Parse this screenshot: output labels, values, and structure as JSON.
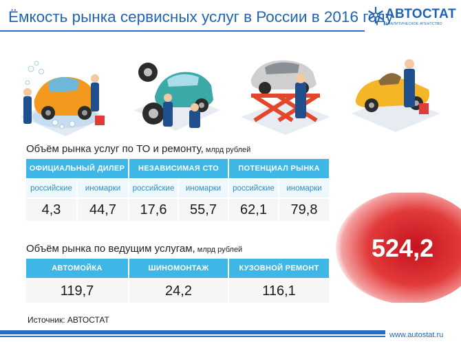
{
  "header": {
    "title": "Ёмкость рынка сервисных услуг в России в 2016 году",
    "logo_name": "АВТОСТАТ",
    "logo_sub": "АНАЛИТИЧЕСКОЕ АГЕНТСТВО"
  },
  "section1": {
    "title": "Объём рынка услуг по ТО и ремонту,",
    "unit": " млрд рублей",
    "groups": [
      {
        "label": "ОФИЦИАЛЬНЫЙ ДИЛЕР",
        "sub": [
          "российские",
          "иномарки"
        ],
        "values": [
          "4,3",
          "44,7"
        ]
      },
      {
        "label": "НЕЗАВИСИМАЯ СТО",
        "sub": [
          "российские",
          "иномарки"
        ],
        "values": [
          "17,6",
          "55,7"
        ]
      },
      {
        "label": "ПОТЕНЦИАЛ РЫНКА",
        "sub": [
          "российские",
          "иномарки"
        ],
        "values": [
          "62,1",
          "79,8"
        ]
      }
    ]
  },
  "section2": {
    "title": "Объём рынка по ведущим услугам,",
    "unit": " млрд рублей",
    "columns": [
      {
        "label": "АВТОМОЙКА",
        "value": "119,7"
      },
      {
        "label": "ШИНОМОНТАЖ",
        "value": "24,2"
      },
      {
        "label": "КУЗОВНОЙ РЕМОНТ",
        "value": "116,1"
      }
    ]
  },
  "total": "524,2",
  "footer": {
    "source": "Источник: АВТОСТАТ",
    "url": "www.autostat.ru"
  },
  "colors": {
    "brand_blue": "#1f63b4",
    "header_cyan": "#3fb7e6",
    "total_red": "#d0202e"
  },
  "illustrations": [
    "car-wash-illustration",
    "tire-service-illustration",
    "car-lift-repair-illustration",
    "body-repair-illustration"
  ]
}
